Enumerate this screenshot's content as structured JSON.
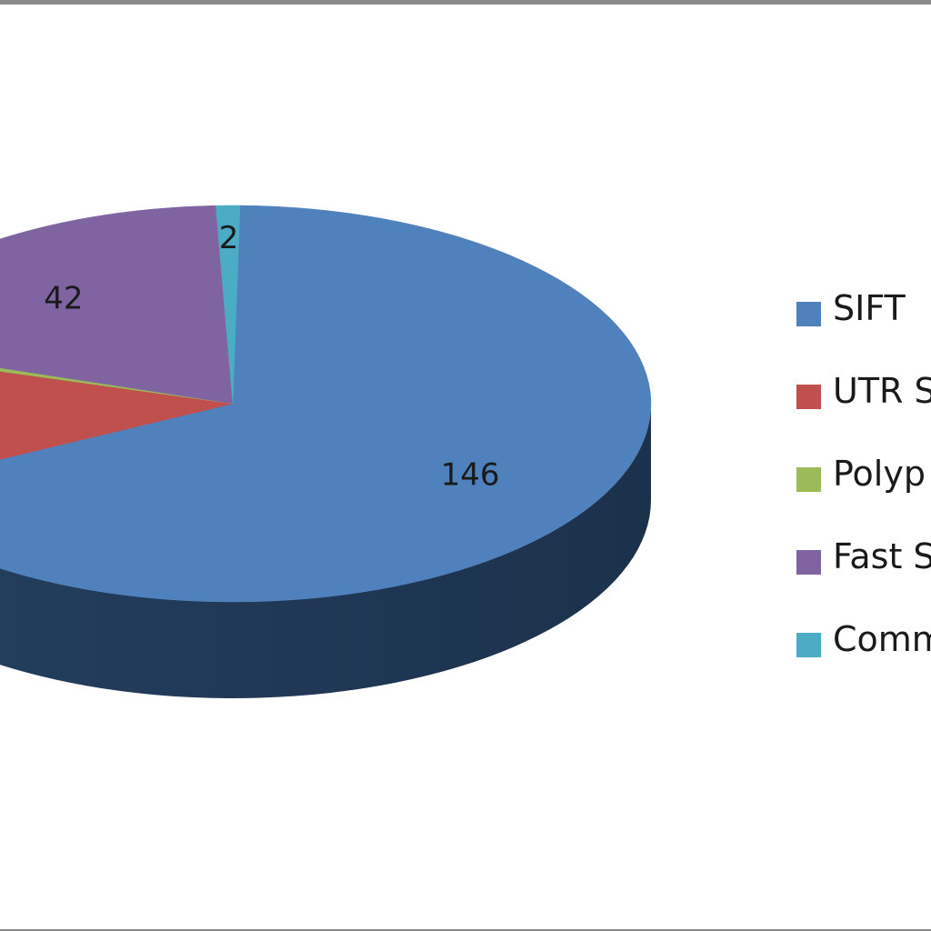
{
  "chart_data": {
    "type": "pie",
    "title": "",
    "three_d": true,
    "series": [
      {
        "label": "SIFT",
        "value": 146,
        "value_label": "146",
        "color": "#4f81bd",
        "side_color": "#243f60"
      },
      {
        "label": "UTR S",
        "value": 26,
        "value_label": "",
        "color": "#c0504d",
        "side_color": "#632523"
      },
      {
        "label": "Polyp",
        "value": 1,
        "value_label": "",
        "color": "#9bbb59",
        "side_color": "#4f6228"
      },
      {
        "label": "Fast S",
        "value": 42,
        "value_label": "42",
        "color": "#8064a2",
        "side_color": "#3f3151"
      },
      {
        "label": "Comm",
        "value": 2,
        "value_label": "2",
        "color": "#4bacc6",
        "side_color": "#205867"
      }
    ],
    "legend_position": "right"
  }
}
